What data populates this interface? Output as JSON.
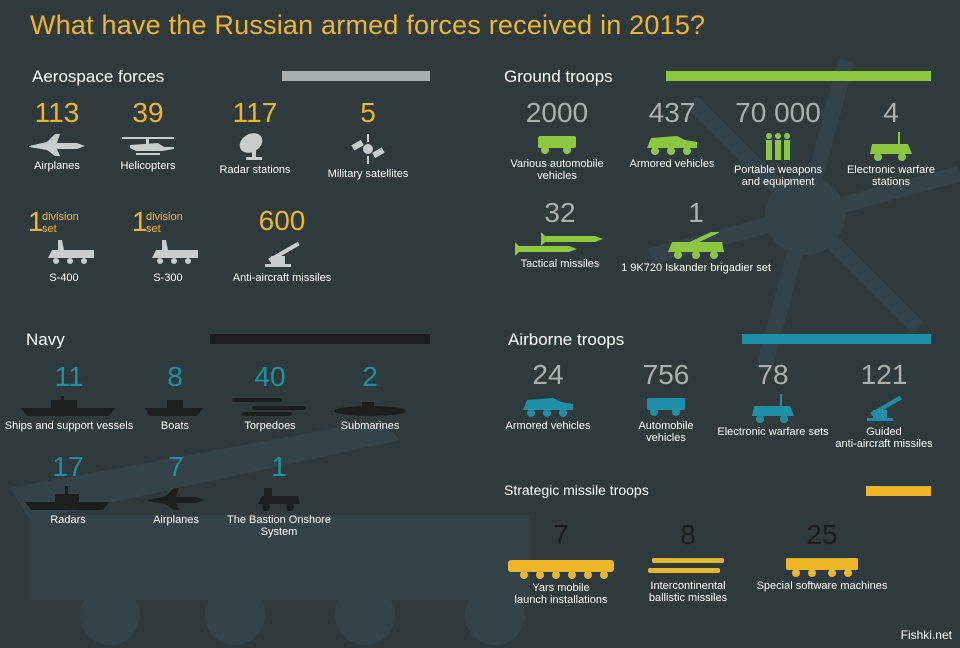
{
  "title": "What have the Russian armed forces received in 2015?",
  "credit": "Fishki.net",
  "colors": {
    "gold": "#f0b62a",
    "green": "#8dc63f",
    "teal": "#1e8fa6",
    "grey": "#a9b0b0",
    "dark": "#1b1f20",
    "bg": "#2f3a3c"
  },
  "aerospace": {
    "heading": "Aerospace forces",
    "items": [
      {
        "value": "113",
        "label": "Airplanes",
        "icon": "jet-icon"
      },
      {
        "value": "39",
        "label": "Helicopters",
        "icon": "helicopter-icon"
      },
      {
        "value": "117",
        "label": "Radar stations",
        "icon": "radar-dish-icon"
      },
      {
        "value": "5",
        "label": "Military satellites",
        "icon": "satellite-icon"
      }
    ],
    "s400": {
      "value": "1",
      "unit1": "division",
      "unit2": "set",
      "label": "S-400"
    },
    "s300": {
      "value": "1",
      "unit1": "division",
      "unit2": "set",
      "label": "S-300"
    },
    "aa": {
      "value": "600",
      "label": "Anti-aircraft missiles"
    }
  },
  "ground": {
    "heading": "Ground troops",
    "items": [
      {
        "value": "2000",
        "label1": "Various automobile",
        "label2": "vehicles"
      },
      {
        "value": "437",
        "label1": "Armored vehicles",
        "label2": ""
      },
      {
        "value": "70 000",
        "label1": "Portable weapons",
        "label2": "and equipment"
      },
      {
        "value": "4",
        "label1": "Electronic warfare",
        "label2": "stations"
      }
    ],
    "tactical": {
      "value": "32",
      "label": "Tactical missiles"
    },
    "iskander": {
      "value": "1",
      "label": "1 9K720 Iskander brigadier set"
    }
  },
  "navy": {
    "heading": "Navy",
    "items": [
      {
        "value": "11",
        "label": "Ships and support vessels"
      },
      {
        "value": "8",
        "label": "Boats"
      },
      {
        "value": "40",
        "label": "Torpedoes"
      },
      {
        "value": "2",
        "label": "Submarines"
      },
      {
        "value": "17",
        "label": "Radars"
      },
      {
        "value": "7",
        "label": "Airplanes"
      },
      {
        "value": "1",
        "label1": "The Bastion Onshore",
        "label2": "System"
      }
    ]
  },
  "airborne": {
    "heading": "Airborne troops",
    "items": [
      {
        "value": "24",
        "label1": "Armored vehicles",
        "label2": ""
      },
      {
        "value": "756",
        "label1": "Automobile",
        "label2": "vehicles"
      },
      {
        "value": "78",
        "label1": "Electronic warfare sets",
        "label2": ""
      },
      {
        "value": "121",
        "label1": "Guided",
        "label2": "anti-aircraft missiles"
      }
    ]
  },
  "strategic": {
    "heading": "Strategic missile troops",
    "items": [
      {
        "value": "7",
        "label1": "Yars mobile",
        "label2": "launch installations"
      },
      {
        "value": "8",
        "label1": "Intercontinental",
        "label2": "ballistic missiles"
      },
      {
        "value": "25",
        "label1": "Special software machines",
        "label2": ""
      }
    ]
  }
}
